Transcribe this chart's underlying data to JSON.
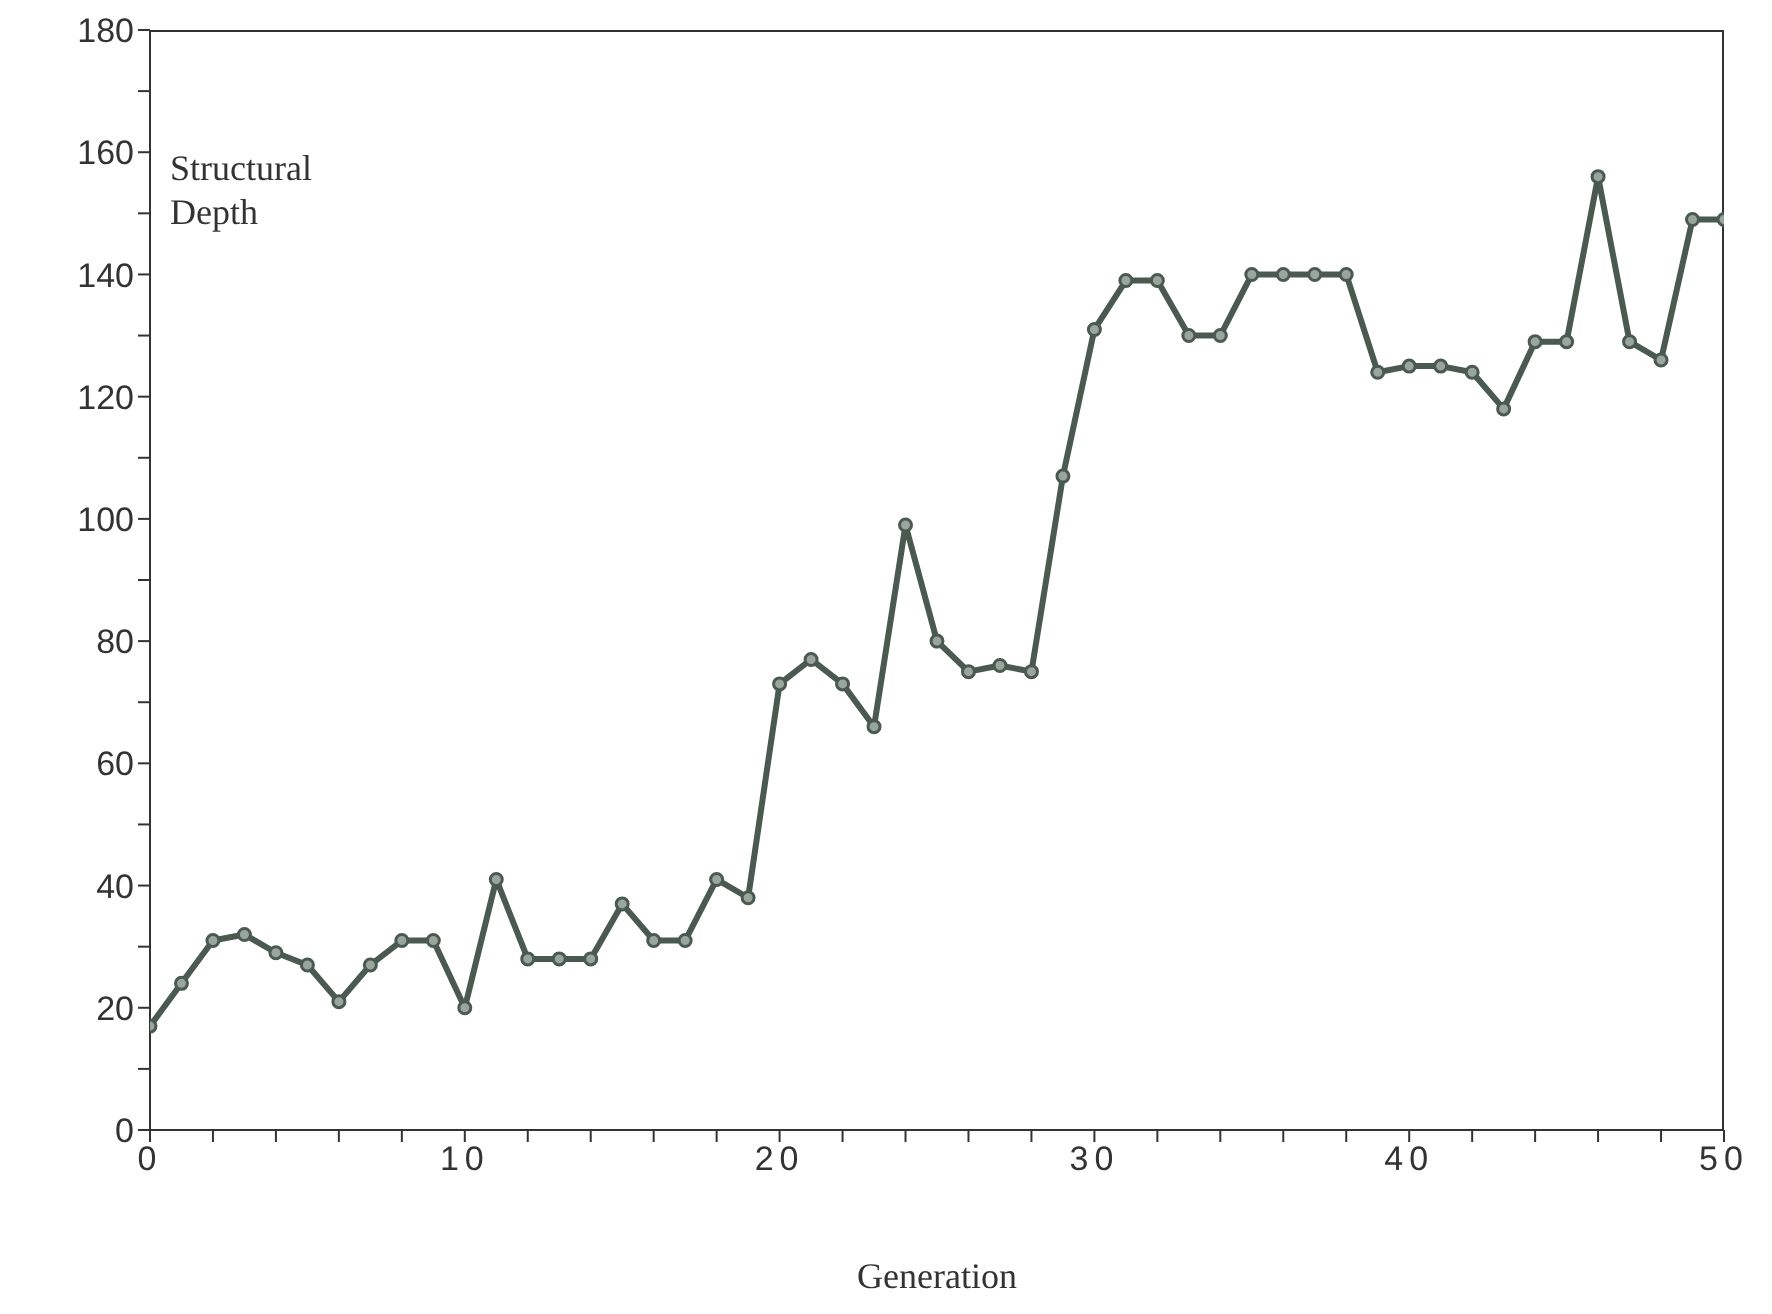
{
  "chart_data": {
    "type": "line",
    "xlabel": "Generation",
    "ylabel": "Structural Depth",
    "x": [
      0,
      1,
      2,
      3,
      4,
      5,
      6,
      7,
      8,
      9,
      10,
      11,
      12,
      13,
      14,
      15,
      16,
      17,
      18,
      19,
      20,
      21,
      22,
      23,
      24,
      25,
      26,
      27,
      28,
      29,
      30,
      31,
      32,
      33,
      34,
      35,
      36,
      37,
      38,
      39,
      40,
      41,
      42,
      43,
      44,
      45,
      46,
      47,
      48,
      49,
      50
    ],
    "series": [
      {
        "color": "#4a5a50",
        "values": [
          17,
          24,
          31,
          32,
          29,
          27,
          21,
          27,
          31,
          31,
          20,
          41,
          28,
          28,
          28,
          37,
          31,
          31,
          41,
          38,
          73,
          77,
          73,
          66,
          99,
          80,
          75,
          76,
          75,
          107,
          131,
          139,
          139,
          130,
          130,
          140,
          140,
          140,
          140,
          124,
          125,
          125,
          124,
          118,
          129,
          129,
          156,
          129,
          126,
          149,
          149
        ]
      }
    ],
    "xlim": [
      0,
      50
    ],
    "xticks": [
      0,
      {
        "value": 2,
        "label": null
      },
      {
        "value": 4,
        "label": null
      },
      {
        "value": 6,
        "label": null
      },
      {
        "value": 8,
        "label": null
      },
      10,
      {
        "value": 12,
        "label": null
      },
      {
        "value": 14,
        "label": null
      },
      {
        "value": 16,
        "label": null
      },
      {
        "value": 18,
        "label": null
      },
      20,
      {
        "value": 22,
        "label": null
      },
      {
        "value": 24,
        "label": null
      },
      {
        "value": 26,
        "label": null
      },
      {
        "value": 28,
        "label": null
      },
      30,
      {
        "value": 32,
        "label": null
      },
      {
        "value": 34,
        "label": null
      },
      {
        "value": 36,
        "label": null
      },
      {
        "value": 38,
        "label": null
      },
      40,
      {
        "value": 42,
        "label": null
      },
      {
        "value": 44,
        "label": null
      },
      {
        "value": 46,
        "label": null
      },
      {
        "value": 48,
        "label": null
      },
      50
    ],
    "ylim": [
      0,
      180
    ],
    "yticks": [
      0,
      {
        "value": 10,
        "label": null
      },
      20,
      {
        "value": 30,
        "label": null
      },
      40,
      {
        "value": 50,
        "label": null
      },
      60,
      {
        "value": 70,
        "label": null
      },
      80,
      {
        "value": 90,
        "label": null
      },
      100,
      {
        "value": 110,
        "label": null
      },
      120,
      {
        "value": 130,
        "label": null
      },
      140,
      {
        "value": 150,
        "label": null
      },
      160,
      {
        "value": 170,
        "label": null
      },
      180
    ],
    "grid": false,
    "legend": false,
    "marker": "circle",
    "line_style": "solid"
  }
}
